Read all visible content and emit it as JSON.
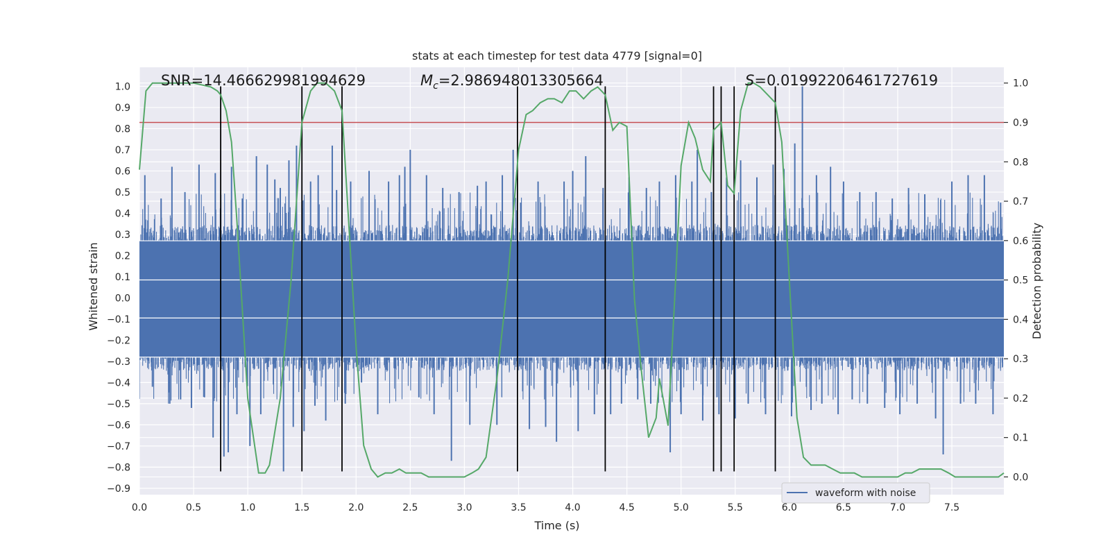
{
  "chart_data": {
    "type": "line",
    "title": "stats at each timestep for test data 4779 [signal=0]",
    "xlabel": "Time (s)",
    "ylabel": "Whitened strain",
    "y2label": "Detection probability",
    "xlim": [
      0,
      7.98
    ],
    "ylim": [
      -0.93,
      1.09
    ],
    "y2lim": [
      -0.045,
      1.04
    ],
    "x_ticks": [
      0.0,
      0.5,
      1.0,
      1.5,
      2.0,
      2.5,
      3.0,
      3.5,
      4.0,
      4.5,
      5.0,
      5.5,
      6.0,
      6.5,
      7.0,
      7.5
    ],
    "y_ticks": [
      1.0,
      0.9,
      0.8,
      0.7,
      0.6,
      0.5,
      0.4,
      0.3,
      0.2,
      0.1,
      0.0,
      -0.1,
      -0.2,
      -0.3,
      -0.4,
      -0.5,
      -0.6,
      -0.7,
      -0.8,
      -0.9
    ],
    "y2_ticks": [
      1.0,
      0.9,
      0.8,
      0.7,
      0.6,
      0.5,
      0.4,
      0.3,
      0.2,
      0.1,
      0.0
    ],
    "grid": true,
    "legend_position": "bottom-right",
    "annotations": {
      "snr": "SNR=14.466629981994629",
      "mc_symbol": "M",
      "mc_sub": "c",
      "mc_value": "=2.986948013305664",
      "s_symbol": "S",
      "s_value": "=0.01992206461727619"
    },
    "threshold": 0.9,
    "detection_times": [
      0.75,
      1.5,
      1.87,
      3.49,
      4.3,
      5.3,
      5.37,
      5.49,
      5.87
    ],
    "detection_line_range": [
      -0.82,
      1.0
    ],
    "series": [
      {
        "name": "waveform with noise",
        "color": "#4c72b0",
        "envelope_values": [
          -0.3,
          0.3
        ],
        "spikes": [
          [
            0.05,
            0.58
          ],
          [
            0.12,
            -0.42
          ],
          [
            0.2,
            0.47
          ],
          [
            0.28,
            -0.5
          ],
          [
            0.3,
            0.62
          ],
          [
            0.38,
            -0.48
          ],
          [
            0.42,
            0.5
          ],
          [
            0.48,
            -0.52
          ],
          [
            0.55,
            0.63
          ],
          [
            0.6,
            -0.47
          ],
          [
            0.68,
            -0.66
          ],
          [
            0.7,
            0.59
          ],
          [
            0.78,
            -0.75
          ],
          [
            0.82,
            -0.73
          ],
          [
            0.85,
            0.62
          ],
          [
            0.9,
            -0.55
          ],
          [
            0.95,
            0.47
          ],
          [
            1.02,
            -0.7
          ],
          [
            1.08,
            0.67
          ],
          [
            1.12,
            -0.55
          ],
          [
            1.18,
            0.63
          ],
          [
            1.25,
            0.56
          ],
          [
            1.3,
            0.52
          ],
          [
            1.33,
            -0.82
          ],
          [
            1.38,
            0.65
          ],
          [
            1.42,
            -0.61
          ],
          [
            1.45,
            0.72
          ],
          [
            1.52,
            -0.63
          ],
          [
            1.58,
            0.55
          ],
          [
            1.62,
            -0.51
          ],
          [
            1.65,
            0.58
          ],
          [
            1.72,
            -0.58
          ],
          [
            1.78,
            0.72
          ],
          [
            1.82,
            0.51
          ],
          [
            1.9,
            -0.5
          ],
          [
            1.95,
            0.55
          ],
          [
            2.05,
            -0.4
          ],
          [
            2.12,
            0.6
          ],
          [
            2.2,
            -0.55
          ],
          [
            2.3,
            0.55
          ],
          [
            2.4,
            0.58
          ],
          [
            2.45,
            0.62
          ],
          [
            2.5,
            0.7
          ],
          [
            2.58,
            -0.47
          ],
          [
            2.65,
            0.58
          ],
          [
            2.72,
            -0.55
          ],
          [
            2.8,
            0.52
          ],
          [
            2.88,
            -0.77
          ],
          [
            2.95,
            0.5
          ],
          [
            3.05,
            -0.6
          ],
          [
            3.12,
            0.53
          ],
          [
            3.2,
            0.55
          ],
          [
            3.3,
            -0.6
          ],
          [
            3.35,
            0.58
          ],
          [
            3.45,
            0.7
          ],
          [
            3.52,
            0.45
          ],
          [
            3.6,
            -0.62
          ],
          [
            3.68,
            0.55
          ],
          [
            3.75,
            -0.61
          ],
          [
            3.85,
            -0.68
          ],
          [
            3.92,
            0.55
          ],
          [
            4.0,
            0.6
          ],
          [
            4.05,
            -0.63
          ],
          [
            4.12,
            0.67
          ],
          [
            4.2,
            -0.55
          ],
          [
            4.28,
            0.52
          ],
          [
            4.35,
            -0.55
          ],
          [
            4.45,
            -0.5
          ],
          [
            4.52,
            0.57
          ],
          [
            4.6,
            -0.48
          ],
          [
            4.68,
            0.52
          ],
          [
            4.72,
            -0.5
          ],
          [
            4.8,
            0.55
          ],
          [
            4.9,
            -0.73
          ],
          [
            4.95,
            0.58
          ],
          [
            5.0,
            -0.55
          ],
          [
            5.1,
            0.55
          ],
          [
            5.15,
            0.7
          ],
          [
            5.2,
            -0.58
          ],
          [
            5.28,
            0.5
          ],
          [
            5.35,
            -0.55
          ],
          [
            5.42,
            0.57
          ],
          [
            5.5,
            -0.57
          ],
          [
            5.55,
            0.65
          ],
          [
            5.62,
            -0.5
          ],
          [
            5.7,
            0.57
          ],
          [
            5.78,
            -0.55
          ],
          [
            5.85,
            0.63
          ],
          [
            5.95,
            0.61
          ],
          [
            6.02,
            -0.56
          ],
          [
            6.05,
            0.73
          ],
          [
            6.12,
            1.0
          ],
          [
            6.2,
            -0.53
          ],
          [
            6.25,
            0.58
          ],
          [
            6.3,
            -0.5
          ],
          [
            6.38,
            0.62
          ],
          [
            6.45,
            -0.55
          ],
          [
            6.5,
            0.55
          ],
          [
            6.58,
            -0.48
          ],
          [
            6.65,
            0.5
          ],
          [
            6.72,
            -0.5
          ],
          [
            6.8,
            0.5
          ],
          [
            6.88,
            -0.52
          ],
          [
            6.95,
            0.47
          ],
          [
            7.02,
            -0.55
          ],
          [
            7.1,
            0.52
          ],
          [
            7.18,
            -0.5
          ],
          [
            7.25,
            0.49
          ],
          [
            7.35,
            -0.57
          ],
          [
            7.42,
            -0.74
          ],
          [
            7.5,
            0.55
          ],
          [
            7.58,
            -0.5
          ],
          [
            7.65,
            0.58
          ],
          [
            7.72,
            -0.5
          ],
          [
            7.8,
            0.58
          ],
          [
            7.88,
            -0.55
          ],
          [
            7.95,
            0.45
          ]
        ]
      },
      {
        "name": "",
        "color": "#55a868",
        "x": [
          0.0,
          0.06,
          0.12,
          0.5,
          0.66,
          0.72,
          0.75,
          0.8,
          0.85,
          0.9,
          1.0,
          1.1,
          1.16,
          1.2,
          1.3,
          1.4,
          1.5,
          1.58,
          1.64,
          1.72,
          1.8,
          1.87,
          1.92,
          2.0,
          2.07,
          2.14,
          2.2,
          2.27,
          2.33,
          2.4,
          2.46,
          2.53,
          2.6,
          2.67,
          2.73,
          2.8,
          2.9,
          3.0,
          3.07,
          3.13,
          3.2,
          3.3,
          3.4,
          3.5,
          3.57,
          3.63,
          3.7,
          3.77,
          3.83,
          3.9,
          3.97,
          4.03,
          4.1,
          4.17,
          4.23,
          4.3,
          4.37,
          4.43,
          4.5,
          4.57,
          4.63,
          4.7,
          4.77,
          4.8,
          4.88,
          4.95,
          5.0,
          5.07,
          5.13,
          5.2,
          5.27,
          5.3,
          5.37,
          5.43,
          5.49,
          5.55,
          5.62,
          5.67,
          5.73,
          5.8,
          5.87,
          5.93,
          6.0,
          6.07,
          6.13,
          6.2,
          6.27,
          6.33,
          6.4,
          6.47,
          6.53,
          6.6,
          6.67,
          6.73,
          6.8,
          6.87,
          6.93,
          7.0,
          7.07,
          7.13,
          7.2,
          7.27,
          7.33,
          7.4,
          7.47,
          7.53,
          7.6,
          7.67,
          7.73,
          7.8,
          7.87,
          7.93,
          7.98
        ],
        "values": [
          0.78,
          0.98,
          1.0,
          1.0,
          0.99,
          0.98,
          0.97,
          0.93,
          0.85,
          0.65,
          0.2,
          0.01,
          0.01,
          0.03,
          0.2,
          0.5,
          0.9,
          0.98,
          1.0,
          1.0,
          0.98,
          0.93,
          0.7,
          0.33,
          0.08,
          0.02,
          0.0,
          0.01,
          0.01,
          0.02,
          0.01,
          0.01,
          0.01,
          0.0,
          0.0,
          0.0,
          0.0,
          0.0,
          0.01,
          0.02,
          0.05,
          0.25,
          0.5,
          0.83,
          0.92,
          0.93,
          0.95,
          0.96,
          0.96,
          0.95,
          0.98,
          0.98,
          0.96,
          0.98,
          0.99,
          0.97,
          0.88,
          0.9,
          0.89,
          0.45,
          0.28,
          0.1,
          0.15,
          0.25,
          0.13,
          0.5,
          0.79,
          0.9,
          0.86,
          0.78,
          0.75,
          0.88,
          0.9,
          0.74,
          0.72,
          0.93,
          1.0,
          1.0,
          0.99,
          0.97,
          0.95,
          0.85,
          0.5,
          0.15,
          0.05,
          0.03,
          0.03,
          0.03,
          0.02,
          0.01,
          0.01,
          0.01,
          0.0,
          0.0,
          0.0,
          0.0,
          0.0,
          0.0,
          0.01,
          0.01,
          0.02,
          0.02,
          0.02,
          0.02,
          0.01,
          0.0,
          0.0,
          0.0,
          0.0,
          0.0,
          0.0,
          0.0,
          0.01
        ]
      }
    ],
    "colors": {
      "axes_bg": "#eaeaf2",
      "grid": "#ffffff",
      "threshold": "#c44e52",
      "detection_line": "#000000",
      "legend_border": "#cccccc",
      "legend_bg": "#eaeaf2"
    }
  }
}
